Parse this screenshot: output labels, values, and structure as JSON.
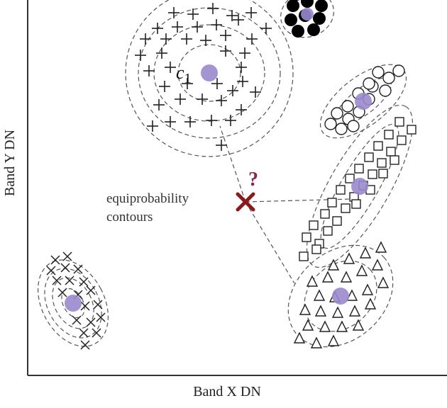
{
  "axes": {
    "x_title": "Band X DN",
    "y_title": "Band Y DN"
  },
  "annotation": {
    "line1": "equiprobability",
    "line2": "contours"
  },
  "centroid_label": {
    "letter": "c",
    "subscript": "1"
  },
  "unknown_mark": "?",
  "colors": {
    "centroid": "#9a88cc",
    "unknown": "#8b1a1a",
    "question": "#8e2150",
    "contour": "#555555",
    "axis": "#333333"
  },
  "classes": [
    {
      "symbol": "plus",
      "contour_rings": 4
    },
    {
      "symbol": "filled-circle",
      "contour_rings": 1
    },
    {
      "symbol": "open-circle",
      "contour_rings": 2
    },
    {
      "symbol": "square",
      "contour_rings": 2
    },
    {
      "symbol": "triangle",
      "contour_rings": 2
    },
    {
      "symbol": "cross",
      "contour_rings": 4
    }
  ]
}
